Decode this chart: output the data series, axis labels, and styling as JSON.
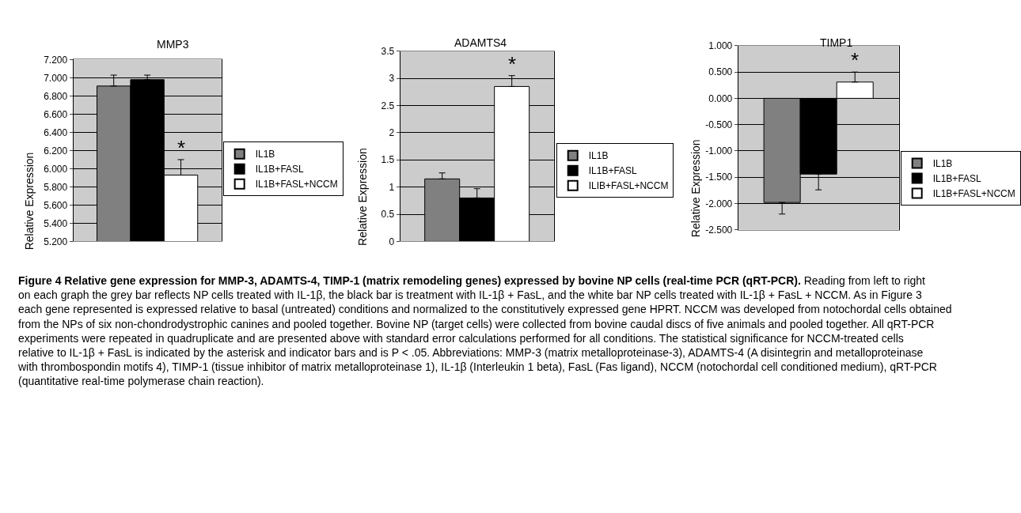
{
  "chart_data": [
    {
      "type": "bar",
      "title": "MMP3",
      "ylabel": "Relative Expression",
      "categories": [
        null
      ],
      "ylim": [
        5.2,
        7.2
      ],
      "yticks": [
        {
          "value": 5.2,
          "label": "5.200"
        },
        {
          "value": 5.4,
          "label": "5.400"
        },
        {
          "value": 5.6,
          "label": "5.600"
        },
        {
          "value": 5.8,
          "label": "5.800"
        },
        {
          "value": 6.0,
          "label": "6.000"
        },
        {
          "value": 6.2,
          "label": "6.200"
        },
        {
          "value": 6.4,
          "label": "6.400"
        },
        {
          "value": 6.6,
          "label": "6.600"
        },
        {
          "value": 6.8,
          "label": "6.800"
        },
        {
          "value": 7.0,
          "label": "7.000"
        },
        {
          "value": 7.2,
          "label": "7.200"
        }
      ],
      "series": [
        {
          "name": "IL1B",
          "color": "#808080",
          "values": [
            6.91
          ],
          "errors": [
            [
              6.91,
              7.03
            ]
          ]
        },
        {
          "name": "IL1B+FASL",
          "color": "#000000",
          "values": [
            6.98
          ],
          "errors": [
            [
              6.98,
              7.03
            ]
          ]
        },
        {
          "name": "IL1B+FASL+NCCM",
          "color": "#ffffff",
          "values": [
            5.93
          ],
          "errors": [
            [
              5.93,
              6.1
            ]
          ]
        }
      ],
      "annotations": [
        {
          "text": "*",
          "y": 6.1
        },
        "Figure 4 Relative gene expression for MMP-3, ADAMTS-4, TIMP-1 (matrix remodeling genes) expressed by bovine NP cells (real-time PCR (qRT-PCR).",
        "Reading from left to right on each graph the grey bar reflects NP cells treated with IL-1β, the black bar is treatment with IL-1β + FasL, and the white bar NP cells treated with IL-1β + FasL + NCCM. As in Figure 3 each gene represented is expressed relative to basal (untreated) conditions and normalized to the constitutively expressed gene HPRT. NCCM was developed from notochordal cells obtained from the NPs of six non-chondrodystrophic canines and pooled together. Bovine NP (target cells) were collected from bovine caudal discs of five animals and pooled together. All qRT-PCR experiments were repeated in quadruplicate and are presented above with standard error calculations performed for all conditions. The statistical significance for NCCM-treated cells relative to IL-1β + FasL is indicated by the asterisk and indicator bars and is P < .05. Abbreviations: MMP-3 (matrix metalloproteinase-3), ADAMTS-4 (A disintegrin and metalloproteinase with thrombospondin motifs 4), TIMP-1 (tissue inhibitor of matrix metalloproteinase 1), IL-1β (Interleukin 1 beta), FasL (Fas ligand), NCCM (notochordal cell conditioned medium), qRT-PCR (quantitative real-time polymerase chain reaction)."
      ],
      "grid": "y",
      "legend": "right",
      "tick_labels": "y"
    },
    {
      "type": "bar",
      "title": "ADAMTS4",
      "ylabel": "Relative Expression",
      "categories": [
        null
      ],
      "ylim": [
        0,
        3.5
      ],
      "yticks": [
        0,
        0.5,
        1,
        1.5,
        2,
        2.5,
        3,
        3.5
      ],
      "series": [
        {
          "name": "IL1B",
          "color": "#808080",
          "values": [
            1.15
          ],
          "errors": [
            [
              1.15,
              1.26
            ]
          ]
        },
        {
          "name": "IL1B+FASL",
          "color": "#000000",
          "values": [
            0.8
          ],
          "errors": [
            [
              0.8,
              0.97
            ]
          ]
        },
        {
          "name": "ILIB+FASL+NCCM",
          "color": "#ffffff",
          "values": [
            2.85
          ],
          "errors": [
            [
              2.85,
              3.05
            ]
          ]
        }
      ],
      "annotations": [
        {
          "text": "*",
          "y": 3.05
        }
      ],
      "grid": "y",
      "legend": "right",
      "tick_labels": "y"
    },
    {
      "type": "bar",
      "title": "TIMP1",
      "ylabel": "Relative Expression",
      "categories": [
        null
      ],
      "ylim": [
        -2.5,
        1.0
      ],
      "yticks": [
        {
          "value": -2.5,
          "label": "-2.500"
        },
        {
          "value": -2.0,
          "label": "-2.000"
        },
        {
          "value": -1.5,
          "label": "-1.500"
        },
        {
          "value": -1.0,
          "label": "-1.000"
        },
        {
          "value": -0.5,
          "label": "-0.500"
        },
        {
          "value": 0.0,
          "label": "0.000"
        },
        {
          "value": 0.5,
          "label": "0.500"
        },
        {
          "value": 1.0,
          "label": "1.000"
        }
      ],
      "series": [
        {
          "name": "IL1B",
          "color": "#808080",
          "values": [
            -1.98
          ],
          "errors": [
            [
              -2.2,
              -1.98
            ]
          ]
        },
        {
          "name": "IL1B+FASL",
          "color": "#000000",
          "values": [
            -1.44
          ],
          "errors": [
            [
              -1.74,
              -1.44
            ]
          ]
        },
        {
          "name": "IL1B+FASL+NCCM",
          "color": "#ffffff",
          "values": [
            0.31
          ],
          "errors": [
            [
              0.31,
              0.5
            ]
          ]
        }
      ],
      "annotations": [
        {
          "text": "*",
          "y": 0.5
        }
      ],
      "grid": "y",
      "legend": "right",
      "tick_labels": "y"
    }
  ]
}
